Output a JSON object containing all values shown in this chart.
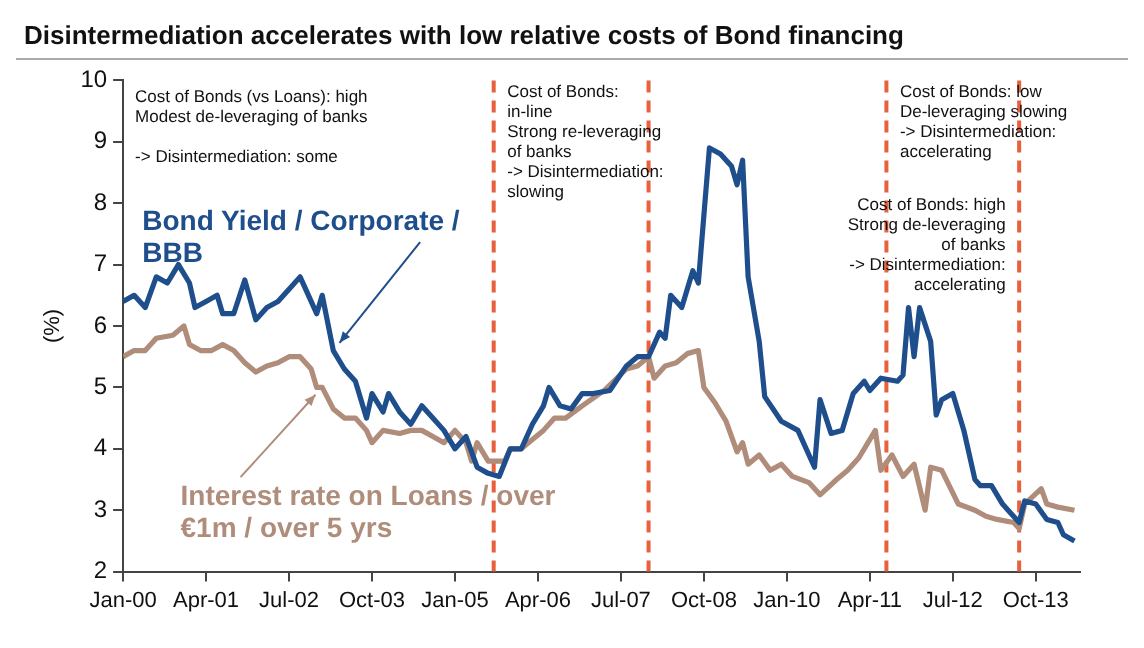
{
  "chart_data": {
    "type": "line",
    "title": "Disintermediation accelerates with low relative costs of Bond financing",
    "ylabel": "(%)",
    "xlim": [
      "2000-01",
      "2014-06"
    ],
    "xticks": [
      {
        "value": "2000-01",
        "label": "Jan-00"
      },
      {
        "value": "2001-04",
        "label": "Apr-01"
      },
      {
        "value": "2002-07",
        "label": "Jul-02"
      },
      {
        "value": "2003-10",
        "label": "Oct-03"
      },
      {
        "value": "2005-01",
        "label": "Jan-05"
      },
      {
        "value": "2006-04",
        "label": "Apr-06"
      },
      {
        "value": "2007-07",
        "label": "Jul-07"
      },
      {
        "value": "2008-10",
        "label": "Oct-08"
      },
      {
        "value": "2010-01",
        "label": "Jan-10"
      },
      {
        "value": "2011-04",
        "label": "Apr-11"
      },
      {
        "value": "2012-07",
        "label": "Jul-12"
      },
      {
        "value": "2013-10",
        "label": "Oct-13"
      }
    ],
    "ylim": [
      2,
      10
    ],
    "yticks": [
      2,
      3,
      4,
      5,
      6,
      7,
      8,
      9,
      10
    ],
    "legend": false,
    "marker": "none",
    "line_style": "solid",
    "series": [
      {
        "name": "Bond Yield / Corporate / BBB",
        "color": "#1f4e8c",
        "x": [
          "2000-01",
          "2000-03",
          "2000-05",
          "2000-07",
          "2000-09",
          "2000-11",
          "2001-01",
          "2001-02",
          "2001-04",
          "2001-06",
          "2001-07",
          "2001-09",
          "2001-11",
          "2002-01",
          "2002-03",
          "2002-05",
          "2002-07",
          "2002-09",
          "2002-11",
          "2002-12",
          "2003-01",
          "2003-03",
          "2003-05",
          "2003-07",
          "2003-09",
          "2003-10",
          "2003-12",
          "2004-01",
          "2004-03",
          "2004-05",
          "2004-07",
          "2004-09",
          "2004-11",
          "2005-01",
          "2005-03",
          "2005-05",
          "2005-07",
          "2005-09",
          "2005-11",
          "2006-01",
          "2006-03",
          "2006-05",
          "2006-06",
          "2006-08",
          "2006-10",
          "2006-12",
          "2007-02",
          "2007-05",
          "2007-08",
          "2007-10",
          "2007-12",
          "2008-02",
          "2008-03",
          "2008-04",
          "2008-06",
          "2008-08",
          "2008-09",
          "2008-11",
          "2009-01",
          "2009-03",
          "2009-04",
          "2009-05",
          "2009-06",
          "2009-08",
          "2009-09",
          "2009-12",
          "2010-03",
          "2010-06",
          "2010-07",
          "2010-09",
          "2010-11",
          "2011-01",
          "2011-03",
          "2011-04",
          "2011-06",
          "2011-09",
          "2011-10",
          "2011-11",
          "2011-12",
          "2012-01",
          "2012-03",
          "2012-04",
          "2012-05",
          "2012-07",
          "2012-09",
          "2012-11",
          "2012-12",
          "2013-02",
          "2013-04",
          "2013-05",
          "2013-07",
          "2013-08",
          "2013-10",
          "2013-12",
          "2014-02",
          "2014-03",
          "2014-05"
        ],
        "values": [
          6.4,
          6.5,
          6.3,
          6.8,
          6.7,
          7.0,
          6.7,
          6.3,
          6.4,
          6.5,
          6.2,
          6.2,
          6.75,
          6.1,
          6.3,
          6.4,
          6.6,
          6.8,
          6.4,
          6.2,
          6.5,
          5.6,
          5.3,
          5.1,
          4.5,
          4.9,
          4.6,
          4.9,
          4.6,
          4.4,
          4.7,
          4.5,
          4.3,
          4.0,
          4.2,
          3.7,
          3.6,
          3.55,
          4.0,
          4.0,
          4.4,
          4.7,
          5.0,
          4.7,
          4.65,
          4.9,
          4.9,
          4.95,
          5.35,
          5.5,
          5.5,
          5.9,
          5.8,
          6.5,
          6.3,
          6.9,
          6.7,
          8.9,
          8.8,
          8.6,
          8.3,
          8.7,
          6.8,
          5.75,
          4.85,
          4.45,
          4.3,
          3.7,
          4.8,
          4.25,
          4.3,
          4.9,
          5.1,
          4.95,
          5.15,
          5.1,
          5.2,
          6.3,
          5.5,
          6.3,
          5.75,
          4.55,
          4.8,
          4.9,
          4.3,
          3.5,
          3.4,
          3.4,
          3.1,
          3.0,
          2.8,
          3.15,
          3.1,
          2.85,
          2.8,
          2.6,
          2.5
        ]
      },
      {
        "name": "Interest rate on Loans / over €1m / over 5 yrs",
        "color": "#b08c7a",
        "x": [
          "2000-01",
          "2000-03",
          "2000-05",
          "2000-07",
          "2000-10",
          "2000-12",
          "2001-01",
          "2001-03",
          "2001-05",
          "2001-07",
          "2001-09",
          "2001-11",
          "2002-01",
          "2002-03",
          "2002-05",
          "2002-07",
          "2002-09",
          "2002-11",
          "2002-12",
          "2003-01",
          "2003-03",
          "2003-05",
          "2003-07",
          "2003-09",
          "2003-10",
          "2003-12",
          "2004-03",
          "2004-05",
          "2004-07",
          "2004-09",
          "2004-11",
          "2005-01",
          "2005-03",
          "2005-04",
          "2005-05",
          "2005-07",
          "2005-10",
          "2005-11",
          "2006-01",
          "2006-03",
          "2006-05",
          "2006-07",
          "2006-09",
          "2006-12",
          "2007-04",
          "2007-08",
          "2007-10",
          "2007-12",
          "2008-01",
          "2008-03",
          "2008-05",
          "2008-07",
          "2008-09",
          "2008-10",
          "2008-12",
          "2009-02",
          "2009-04",
          "2009-05",
          "2009-06",
          "2009-08",
          "2009-10",
          "2009-12",
          "2010-02",
          "2010-05",
          "2010-07",
          "2010-10",
          "2010-12",
          "2011-02",
          "2011-05",
          "2011-06",
          "2011-08",
          "2011-10",
          "2011-12",
          "2012-02",
          "2012-03",
          "2012-05",
          "2012-08",
          "2012-11",
          "2013-01",
          "2013-03",
          "2013-06",
          "2013-07",
          "2013-08",
          "2013-11",
          "2013-12",
          "2014-02",
          "2014-05"
        ],
        "values": [
          5.5,
          5.6,
          5.6,
          5.8,
          5.85,
          6.0,
          5.7,
          5.6,
          5.6,
          5.7,
          5.6,
          5.4,
          5.25,
          5.35,
          5.4,
          5.5,
          5.5,
          5.3,
          5.0,
          5.0,
          4.65,
          4.5,
          4.5,
          4.3,
          4.1,
          4.3,
          4.25,
          4.3,
          4.3,
          4.2,
          4.1,
          4.3,
          4.1,
          3.8,
          4.1,
          3.8,
          3.8,
          4.0,
          4.0,
          4.15,
          4.3,
          4.5,
          4.5,
          4.7,
          4.95,
          5.3,
          5.35,
          5.5,
          5.15,
          5.35,
          5.4,
          5.55,
          5.6,
          5.0,
          4.75,
          4.45,
          3.95,
          4.1,
          3.75,
          3.9,
          3.65,
          3.75,
          3.55,
          3.45,
          3.25,
          3.5,
          3.65,
          3.85,
          4.3,
          3.65,
          3.9,
          3.55,
          3.75,
          3.0,
          3.7,
          3.65,
          3.1,
          3.0,
          2.9,
          2.85,
          2.8,
          2.7,
          3.1,
          3.35,
          3.1,
          3.05,
          3.0
        ]
      }
    ],
    "ref_lines": [
      {
        "axis": "x",
        "value": "2005-08",
        "color": "#e8603c",
        "line_style": "dashed"
      },
      {
        "axis": "x",
        "value": "2007-12",
        "color": "#e8603c",
        "line_style": "dashed"
      },
      {
        "axis": "x",
        "value": "2011-07",
        "color": "#e8603c",
        "line_style": "dashed"
      },
      {
        "axis": "x",
        "value": "2013-07",
        "color": "#e8603c",
        "line_style": "dashed"
      }
    ],
    "annotations": [
      "Cost of Bonds (vs Loans): high\nModest de-leveraging of banks\n\n-> Disintermediation: some",
      {
        "text": "Cost of Bonds:\nin-line\nStrong re-leveraging\nof banks\n-> Disintermediation:\nslowing",
        "x": "2005-09",
        "y": 9.95
      },
      {
        "text": "Cost of Bonds: low\nDe-leveraging slowing\n-> Disintermediation:\naccelerating",
        "x": "2011-08",
        "y": 9.95
      },
      {
        "text": "Cost of Bonds: high\nStrong de-leveraging\nof banks\n-> Disintermediation:\naccelerating",
        "x": "2013-06",
        "y": 8.1
      }
    ]
  }
}
